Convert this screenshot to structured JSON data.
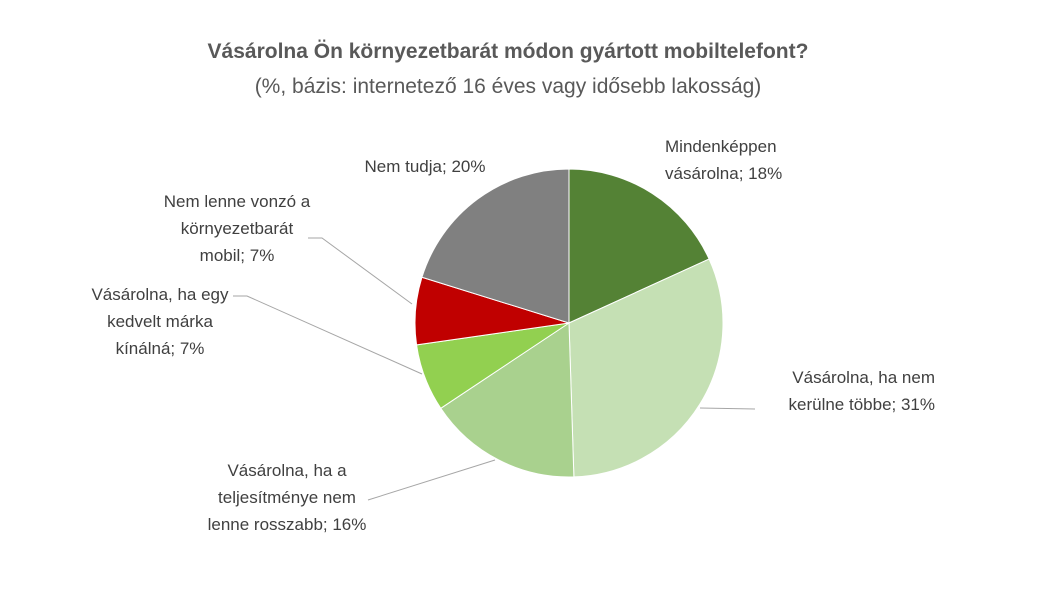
{
  "chart_data": {
    "type": "pie",
    "title": "Vásárolna Ön környezetbarát módon gyártott mobiltelefont?",
    "subtitle": "(%, bázis: internetező 16 éves vagy idősebb lakosság)",
    "slices": [
      {
        "label": "Mindenképpen vásárolna",
        "value": 18,
        "color": "#548235",
        "label_lines": [
          "Mindenképpen",
          "vásárolna; 18%"
        ]
      },
      {
        "label": "Vásárolna, ha nem kerülne többe",
        "value": 31,
        "color": "#C5E0B4",
        "label_lines": [
          "Vásárolna, ha nem",
          "kerülne többe; 31%"
        ]
      },
      {
        "label": "Vásárolna, ha a teljesítménye nem lenne rosszabb",
        "value": 16,
        "color": "#A9D18E",
        "label_lines": [
          "Vásárolna, ha a",
          "teljesítménye nem",
          "lenne rosszabb; 16%"
        ]
      },
      {
        "label": "Vásárolna, ha egy kedvelt márka kínálná",
        "value": 7,
        "color": "#92D050",
        "label_lines": [
          "Vásárolna, ha egy",
          "kedvelt márka",
          "kínálná; 7%"
        ]
      },
      {
        "label": "Nem lenne vonzó a környezetbarát mobil",
        "value": 7,
        "color": "#C00000",
        "label_lines": [
          "Nem lenne vonzó a",
          "környezetbarát",
          "mobil; 7%"
        ]
      },
      {
        "label": "Nem tudja",
        "value": 20,
        "color": "#808080",
        "label_lines": [
          "Nem tudja; 20%"
        ]
      }
    ]
  }
}
